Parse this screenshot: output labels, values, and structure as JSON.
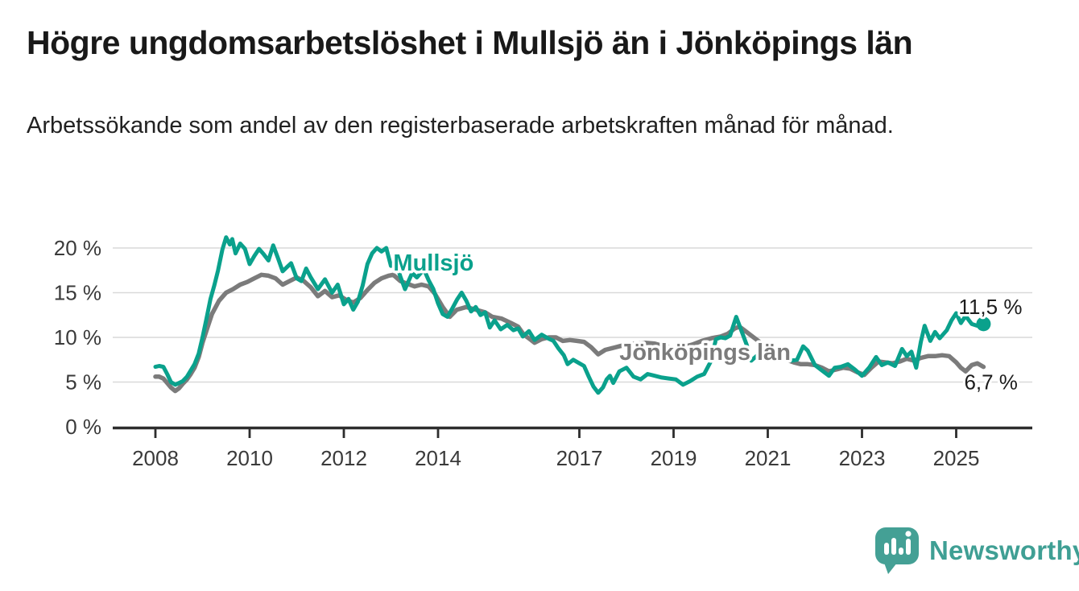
{
  "header": {
    "title": "Högre ungdomsarbetslöshet i Mullsjö än i Jönköpings län",
    "subtitle": "Arbetssökande som andel av den registerbaserade arbetskraften månad för månad."
  },
  "footer": {
    "brand": "Newsworthy"
  },
  "colors": {
    "mullsjo": "#0aa18c",
    "jonkoping": "#7b7b7b",
    "grid": "#d9d9d9",
    "axis": "#2d2d2d",
    "tick_text": "#3a3a3a",
    "annotation_text": "#1c1c1c",
    "logo_teal": "#44a095"
  },
  "chart_data": {
    "type": "line",
    "title": "Högre ungdomsarbetslöshet i Mullsjö än i Jönköpings län",
    "subtitle": "Arbetssökande som andel av den registerbaserade arbetskraften månad för månad.",
    "unit": "%",
    "grid": true,
    "legend_position": "inline-labels",
    "x_axis": {
      "min": 2007.1,
      "max": 2026.6,
      "ticks": [
        2008,
        2010,
        2012,
        2014,
        2017,
        2019,
        2021,
        2023,
        2025
      ]
    },
    "y_axis": {
      "min": 0,
      "max": 21.5,
      "ticks": [
        0,
        5,
        10,
        15,
        20
      ],
      "tick_labels": [
        "0 %",
        "5 %",
        "10 %",
        "15 %",
        "20 %"
      ]
    },
    "series": [
      {
        "name": "Jönköpings län",
        "color": "#7b7b7b",
        "end_value_label": "6,7 %",
        "end_dot": false,
        "points": [
          [
            2008.0,
            5.6
          ],
          [
            2008.08,
            5.6
          ],
          [
            2008.17,
            5.4
          ],
          [
            2008.25,
            4.9
          ],
          [
            2008.33,
            4.4
          ],
          [
            2008.42,
            4.0
          ],
          [
            2008.5,
            4.3
          ],
          [
            2008.58,
            4.8
          ],
          [
            2008.67,
            5.3
          ],
          [
            2008.75,
            5.9
          ],
          [
            2008.83,
            6.6
          ],
          [
            2008.92,
            7.8
          ],
          [
            2009.0,
            9.4
          ],
          [
            2009.1,
            11.0
          ],
          [
            2009.2,
            12.6
          ],
          [
            2009.35,
            14.1
          ],
          [
            2009.5,
            15.0
          ],
          [
            2009.65,
            15.4
          ],
          [
            2009.8,
            15.9
          ],
          [
            2009.95,
            16.2
          ],
          [
            2010.1,
            16.6
          ],
          [
            2010.25,
            17.0
          ],
          [
            2010.4,
            16.9
          ],
          [
            2010.55,
            16.6
          ],
          [
            2010.7,
            15.9
          ],
          [
            2010.85,
            16.3
          ],
          [
            2011.0,
            16.7
          ],
          [
            2011.15,
            16.3
          ],
          [
            2011.3,
            15.6
          ],
          [
            2011.45,
            14.6
          ],
          [
            2011.6,
            15.2
          ],
          [
            2011.75,
            14.5
          ],
          [
            2011.9,
            14.7
          ],
          [
            2012.05,
            14.2
          ],
          [
            2012.2,
            13.9
          ],
          [
            2012.35,
            14.4
          ],
          [
            2012.5,
            15.3
          ],
          [
            2012.65,
            16.1
          ],
          [
            2012.8,
            16.6
          ],
          [
            2012.95,
            16.9
          ],
          [
            2013.05,
            17.0
          ],
          [
            2013.2,
            16.3
          ],
          [
            2013.35,
            16.0
          ],
          [
            2013.5,
            15.7
          ],
          [
            2013.65,
            15.9
          ],
          [
            2013.8,
            15.7
          ],
          [
            2013.93,
            14.9
          ],
          [
            2014.1,
            13.4
          ],
          [
            2014.25,
            12.3
          ],
          [
            2014.4,
            13.1
          ],
          [
            2014.6,
            13.4
          ],
          [
            2014.8,
            13.1
          ],
          [
            2015.0,
            12.8
          ],
          [
            2015.15,
            12.3
          ],
          [
            2015.35,
            12.1
          ],
          [
            2015.55,
            11.6
          ],
          [
            2015.7,
            11.2
          ],
          [
            2015.82,
            10.3
          ],
          [
            2015.95,
            9.8
          ],
          [
            2016.05,
            9.4
          ],
          [
            2016.2,
            9.8
          ],
          [
            2016.35,
            10.0
          ],
          [
            2016.5,
            10.0
          ],
          [
            2016.65,
            9.6
          ],
          [
            2016.8,
            9.7
          ],
          [
            2016.95,
            9.6
          ],
          [
            2017.1,
            9.5
          ],
          [
            2017.25,
            8.9
          ],
          [
            2017.4,
            8.1
          ],
          [
            2017.55,
            8.6
          ],
          [
            2017.7,
            8.8
          ],
          [
            2017.85,
            9.0
          ],
          [
            2018.0,
            9.2
          ],
          [
            2018.2,
            9.3
          ],
          [
            2018.4,
            9.4
          ],
          [
            2018.6,
            9.3
          ],
          [
            2018.8,
            9.0
          ],
          [
            2019.0,
            8.8
          ],
          [
            2019.2,
            8.9
          ],
          [
            2019.4,
            9.2
          ],
          [
            2019.6,
            9.6
          ],
          [
            2019.8,
            9.9
          ],
          [
            2020.0,
            10.1
          ],
          [
            2020.15,
            10.4
          ],
          [
            2020.3,
            11.0
          ],
          [
            2020.4,
            11.2
          ],
          [
            2020.5,
            10.8
          ],
          [
            2020.65,
            10.2
          ],
          [
            2020.8,
            9.6
          ],
          [
            2020.95,
            9.0
          ],
          [
            2021.1,
            8.4
          ],
          [
            2021.25,
            7.9
          ],
          [
            2021.4,
            7.5
          ],
          [
            2021.55,
            7.2
          ],
          [
            2021.7,
            7.0
          ],
          [
            2021.85,
            7.0
          ],
          [
            2022.0,
            6.9
          ],
          [
            2022.15,
            6.6
          ],
          [
            2022.3,
            6.2
          ],
          [
            2022.45,
            6.4
          ],
          [
            2022.6,
            6.6
          ],
          [
            2022.75,
            6.5
          ],
          [
            2022.9,
            6.1
          ],
          [
            2023.05,
            5.8
          ],
          [
            2023.2,
            6.6
          ],
          [
            2023.35,
            7.3
          ],
          [
            2023.5,
            7.2
          ],
          [
            2023.65,
            7.1
          ],
          [
            2023.8,
            7.3
          ],
          [
            2023.95,
            7.6
          ],
          [
            2024.1,
            7.4
          ],
          [
            2024.25,
            7.7
          ],
          [
            2024.4,
            7.9
          ],
          [
            2024.55,
            7.9
          ],
          [
            2024.7,
            8.0
          ],
          [
            2024.85,
            7.9
          ],
          [
            2025.0,
            7.2
          ],
          [
            2025.1,
            6.6
          ],
          [
            2025.2,
            6.2
          ],
          [
            2025.33,
            6.9
          ],
          [
            2025.45,
            7.1
          ],
          [
            2025.58,
            6.7
          ]
        ]
      },
      {
        "name": "Mullsjö",
        "color": "#0aa18c",
        "end_value_label": "11,5 %",
        "end_dot": true,
        "points": [
          [
            2008.0,
            6.7
          ],
          [
            2008.08,
            6.8
          ],
          [
            2008.17,
            6.7
          ],
          [
            2008.25,
            5.9
          ],
          [
            2008.33,
            5.0
          ],
          [
            2008.42,
            4.7
          ],
          [
            2008.5,
            4.9
          ],
          [
            2008.58,
            5.1
          ],
          [
            2008.67,
            5.6
          ],
          [
            2008.75,
            6.3
          ],
          [
            2008.83,
            7.0
          ],
          [
            2008.92,
            8.2
          ],
          [
            2009.0,
            10.0
          ],
          [
            2009.08,
            12.0
          ],
          [
            2009.17,
            14.3
          ],
          [
            2009.25,
            15.8
          ],
          [
            2009.33,
            17.5
          ],
          [
            2009.42,
            19.8
          ],
          [
            2009.5,
            21.2
          ],
          [
            2009.58,
            20.4
          ],
          [
            2009.63,
            21.0
          ],
          [
            2009.7,
            19.4
          ],
          [
            2009.8,
            20.5
          ],
          [
            2009.9,
            19.9
          ],
          [
            2010.0,
            18.2
          ],
          [
            2010.1,
            19.1
          ],
          [
            2010.2,
            19.9
          ],
          [
            2010.3,
            19.3
          ],
          [
            2010.4,
            18.6
          ],
          [
            2010.5,
            20.3
          ],
          [
            2010.6,
            18.9
          ],
          [
            2010.7,
            17.4
          ],
          [
            2010.8,
            17.9
          ],
          [
            2010.88,
            18.3
          ],
          [
            2011.0,
            16.6
          ],
          [
            2011.1,
            16.3
          ],
          [
            2011.2,
            17.7
          ],
          [
            2011.3,
            16.7
          ],
          [
            2011.45,
            15.4
          ],
          [
            2011.6,
            16.5
          ],
          [
            2011.75,
            15.0
          ],
          [
            2011.87,
            15.9
          ],
          [
            2012.0,
            13.7
          ],
          [
            2012.1,
            14.3
          ],
          [
            2012.2,
            13.1
          ],
          [
            2012.3,
            14.0
          ],
          [
            2012.4,
            15.8
          ],
          [
            2012.5,
            18.2
          ],
          [
            2012.6,
            19.4
          ],
          [
            2012.7,
            20.0
          ],
          [
            2012.8,
            19.6
          ],
          [
            2012.9,
            20.0
          ],
          [
            2013.0,
            18.0
          ],
          [
            2013.1,
            18.6
          ],
          [
            2013.2,
            16.8
          ],
          [
            2013.3,
            15.4
          ],
          [
            2013.45,
            17.2
          ],
          [
            2013.55,
            16.7
          ],
          [
            2013.7,
            17.6
          ],
          [
            2013.8,
            16.4
          ],
          [
            2013.9,
            15.4
          ],
          [
            2014.0,
            13.8
          ],
          [
            2014.1,
            12.6
          ],
          [
            2014.2,
            12.3
          ],
          [
            2014.3,
            13.2
          ],
          [
            2014.4,
            14.2
          ],
          [
            2014.5,
            15.0
          ],
          [
            2014.6,
            14.1
          ],
          [
            2014.7,
            12.9
          ],
          [
            2014.8,
            13.4
          ],
          [
            2014.9,
            12.5
          ],
          [
            2015.0,
            12.8
          ],
          [
            2015.1,
            11.1
          ],
          [
            2015.2,
            11.9
          ],
          [
            2015.33,
            10.9
          ],
          [
            2015.47,
            11.4
          ],
          [
            2015.6,
            10.8
          ],
          [
            2015.7,
            11.0
          ],
          [
            2015.8,
            10.1
          ],
          [
            2015.93,
            10.7
          ],
          [
            2016.05,
            9.7
          ],
          [
            2016.2,
            10.3
          ],
          [
            2016.33,
            9.9
          ],
          [
            2016.45,
            9.6
          ],
          [
            2016.55,
            8.8
          ],
          [
            2016.67,
            8.0
          ],
          [
            2016.75,
            7.0
          ],
          [
            2016.87,
            7.5
          ],
          [
            2017.0,
            7.1
          ],
          [
            2017.1,
            6.8
          ],
          [
            2017.2,
            5.6
          ],
          [
            2017.3,
            4.5
          ],
          [
            2017.4,
            3.8
          ],
          [
            2017.5,
            4.4
          ],
          [
            2017.58,
            5.3
          ],
          [
            2017.65,
            5.7
          ],
          [
            2017.72,
            4.9
          ],
          [
            2017.85,
            6.2
          ],
          [
            2018.0,
            6.6
          ],
          [
            2018.15,
            5.6
          ],
          [
            2018.3,
            5.3
          ],
          [
            2018.45,
            5.9
          ],
          [
            2018.6,
            5.7
          ],
          [
            2018.75,
            5.5
          ],
          [
            2018.9,
            5.4
          ],
          [
            2019.05,
            5.3
          ],
          [
            2019.2,
            4.7
          ],
          [
            2019.35,
            5.1
          ],
          [
            2019.5,
            5.6
          ],
          [
            2019.65,
            5.9
          ],
          [
            2019.78,
            7.2
          ],
          [
            2019.9,
            9.8
          ],
          [
            2020.0,
            10.0
          ],
          [
            2020.1,
            9.9
          ],
          [
            2020.2,
            10.2
          ],
          [
            2020.33,
            12.3
          ],
          [
            2020.45,
            10.6
          ],
          [
            2020.55,
            9.2
          ],
          [
            2020.65,
            7.4
          ],
          [
            2020.78,
            8.0
          ],
          [
            2020.9,
            8.6
          ],
          [
            2021.05,
            8.4
          ],
          [
            2021.2,
            8.8
          ],
          [
            2021.35,
            8.0
          ],
          [
            2021.5,
            7.4
          ],
          [
            2021.62,
            7.5
          ],
          [
            2021.75,
            9.0
          ],
          [
            2021.85,
            8.5
          ],
          [
            2022.0,
            6.9
          ],
          [
            2022.15,
            6.3
          ],
          [
            2022.3,
            5.7
          ],
          [
            2022.42,
            6.6
          ],
          [
            2022.55,
            6.7
          ],
          [
            2022.7,
            7.0
          ],
          [
            2022.85,
            6.4
          ],
          [
            2023.0,
            5.7
          ],
          [
            2023.15,
            6.6
          ],
          [
            2023.3,
            7.8
          ],
          [
            2023.42,
            6.9
          ],
          [
            2023.55,
            7.2
          ],
          [
            2023.7,
            6.8
          ],
          [
            2023.85,
            8.7
          ],
          [
            2023.95,
            7.9
          ],
          [
            2024.05,
            8.4
          ],
          [
            2024.15,
            6.6
          ],
          [
            2024.25,
            9.5
          ],
          [
            2024.33,
            11.3
          ],
          [
            2024.45,
            9.6
          ],
          [
            2024.55,
            10.6
          ],
          [
            2024.65,
            9.9
          ],
          [
            2024.8,
            10.8
          ],
          [
            2024.9,
            11.9
          ],
          [
            2025.0,
            12.7
          ],
          [
            2025.1,
            11.6
          ],
          [
            2025.2,
            12.4
          ],
          [
            2025.33,
            11.5
          ],
          [
            2025.45,
            11.3
          ],
          [
            2025.58,
            11.5
          ]
        ]
      }
    ],
    "series_labels": [
      {
        "text": "Mullsjö",
        "x": 2013.05,
        "y": 17.5,
        "color": "#0aa18c"
      },
      {
        "text": "Jönköpings län",
        "x": 2017.85,
        "y": 7.5,
        "color": "#7b7b7b"
      }
    ],
    "annotations": [
      {
        "text": "11,5 %",
        "x": 2025.05,
        "y": 12.6
      },
      {
        "text": "6,7 %",
        "x": 2025.17,
        "y": 4.2
      }
    ]
  }
}
